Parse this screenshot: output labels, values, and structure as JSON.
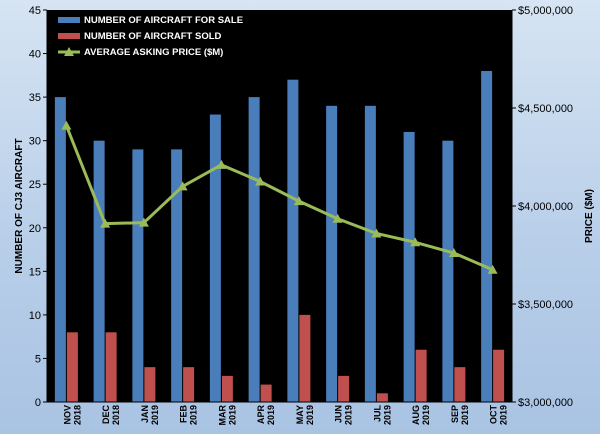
{
  "chart_data": {
    "type": "bar",
    "categories": [
      [
        "NOV",
        "2018"
      ],
      [
        "DEC",
        "2018"
      ],
      [
        "JAN",
        "2019"
      ],
      [
        "FEB",
        "2019"
      ],
      [
        "MAR",
        "2019"
      ],
      [
        "APR",
        "2019"
      ],
      [
        "MAY",
        "2019"
      ],
      [
        "JUN",
        "2019"
      ],
      [
        "JUL",
        "2019"
      ],
      [
        "AUG",
        "2019"
      ],
      [
        "SEP",
        "2019"
      ],
      [
        "OCT",
        "2019"
      ]
    ],
    "series": [
      {
        "name": "NUMBER OF AIRCRAFT FOR SALE",
        "type": "bar",
        "axis": "left",
        "color": "#4a7ebb",
        "values": [
          35,
          30,
          29,
          29,
          33,
          35,
          37,
          34,
          34,
          31,
          30,
          38
        ]
      },
      {
        "name": "NUMBER OF AIRCRAFT SOLD",
        "type": "bar",
        "axis": "left",
        "color": "#c0504d",
        "values": [
          8,
          8,
          4,
          4,
          3,
          2,
          10,
          3,
          1,
          6,
          4,
          6
        ]
      },
      {
        "name": "AVERAGE ASKING PRICE ($M)",
        "type": "line",
        "axis": "right",
        "color": "#9bbb59",
        "values": [
          4410000,
          3910000,
          3915000,
          4100000,
          4210000,
          4125000,
          4025000,
          3935000,
          3860000,
          3815000,
          3760000,
          3675000
        ]
      }
    ],
    "ylabel": "NUMBER OF CJ3 AIRCRAFT",
    "y2label": "PRICE ($M)",
    "ylim": [
      0,
      45
    ],
    "yticks": [
      0,
      5,
      10,
      15,
      20,
      25,
      30,
      35,
      40,
      45
    ],
    "y2lim": [
      3000000,
      5000000
    ],
    "y2ticks": [
      "$3,000,000",
      "$3,500,000",
      "$4,000,000",
      "$4,500,000",
      "$5,000,000"
    ],
    "y2tick_values": [
      3000000,
      3500000,
      4000000,
      4500000,
      5000000
    ],
    "grid": false,
    "legend": "top-left",
    "plot_background": "#000000"
  }
}
